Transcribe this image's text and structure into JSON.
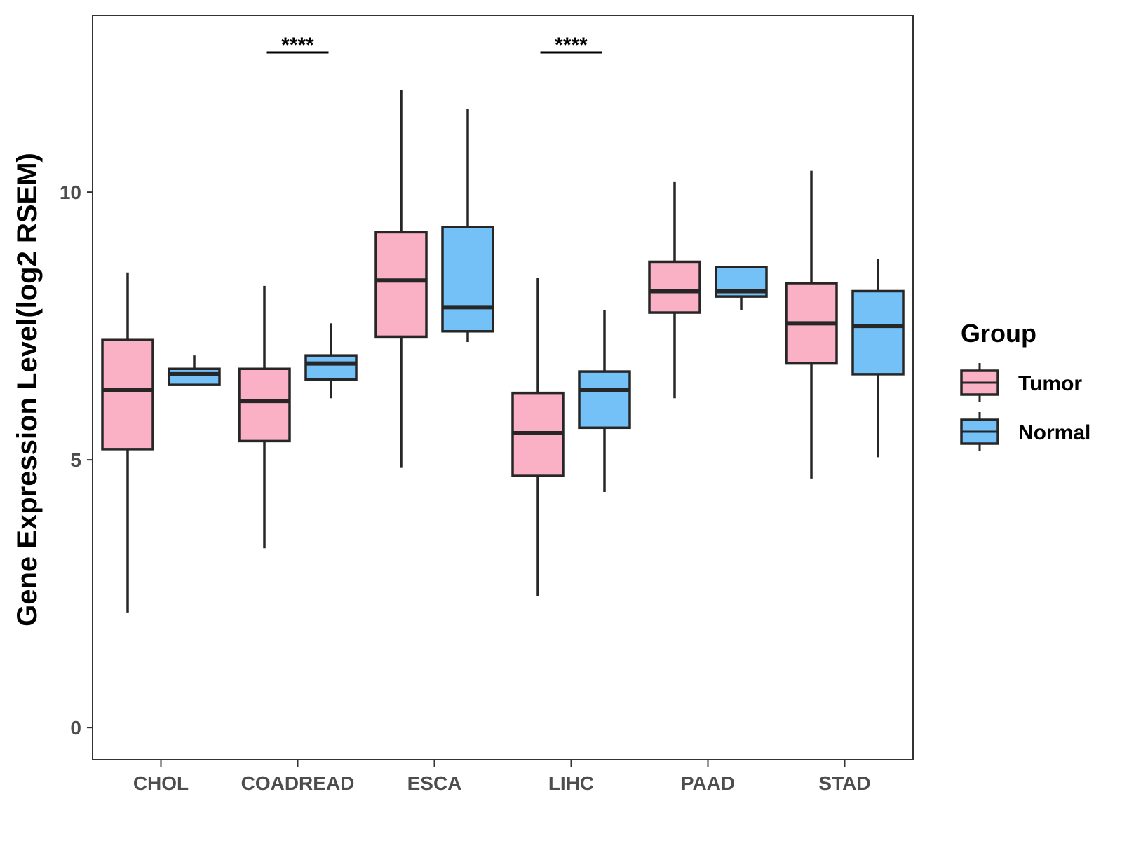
{
  "chart_data": {
    "type": "boxplot",
    "title": "",
    "xlabel": "",
    "ylabel": "Gene Expression Level(log2 RSEM)",
    "ylim": [
      -0.6,
      13.3
    ],
    "yticks": [
      0,
      5,
      10
    ],
    "grid": false,
    "legend_position": "right",
    "categories": [
      "CHOL",
      "COADREAD",
      "ESCA",
      "LIHC",
      "PAAD",
      "STAD"
    ],
    "legend": {
      "title": "Group"
    },
    "series": [
      {
        "name": "Tumor",
        "color": "#FBB1C5",
        "boxes": [
          {
            "min": 2.15,
            "q1": 5.2,
            "median": 6.3,
            "q3": 7.25,
            "max": 8.5
          },
          {
            "min": 3.35,
            "q1": 5.35,
            "median": 6.1,
            "q3": 6.7,
            "max": 8.25
          },
          {
            "min": 4.85,
            "q1": 7.3,
            "median": 8.35,
            "q3": 9.25,
            "max": 11.9
          },
          {
            "min": 2.45,
            "q1": 4.7,
            "median": 5.5,
            "q3": 6.25,
            "max": 8.4
          },
          {
            "min": 6.15,
            "q1": 7.75,
            "median": 8.15,
            "q3": 8.7,
            "max": 10.2
          },
          {
            "min": 4.65,
            "q1": 6.8,
            "median": 7.55,
            "q3": 8.3,
            "max": 10.4
          }
        ]
      },
      {
        "name": "Normal",
        "color": "#74C1F8",
        "boxes": [
          {
            "min": 6.4,
            "q1": 6.4,
            "median": 6.6,
            "q3": 6.7,
            "max": 6.95
          },
          {
            "min": 6.15,
            "q1": 6.5,
            "median": 6.8,
            "q3": 6.95,
            "max": 7.55
          },
          {
            "min": 7.2,
            "q1": 7.4,
            "median": 7.85,
            "q3": 9.35,
            "max": 11.55
          },
          {
            "min": 4.4,
            "q1": 5.6,
            "median": 6.3,
            "q3": 6.65,
            "max": 7.8
          },
          {
            "min": 7.8,
            "q1": 8.05,
            "median": 8.15,
            "q3": 8.6,
            "max": 8.6
          },
          {
            "min": 5.05,
            "q1": 6.6,
            "median": 7.5,
            "q3": 8.15,
            "max": 8.75
          }
        ]
      }
    ],
    "annotations": [
      {
        "category": "COADREAD",
        "text": "****"
      },
      {
        "category": "LIHC",
        "text": "****"
      }
    ]
  }
}
